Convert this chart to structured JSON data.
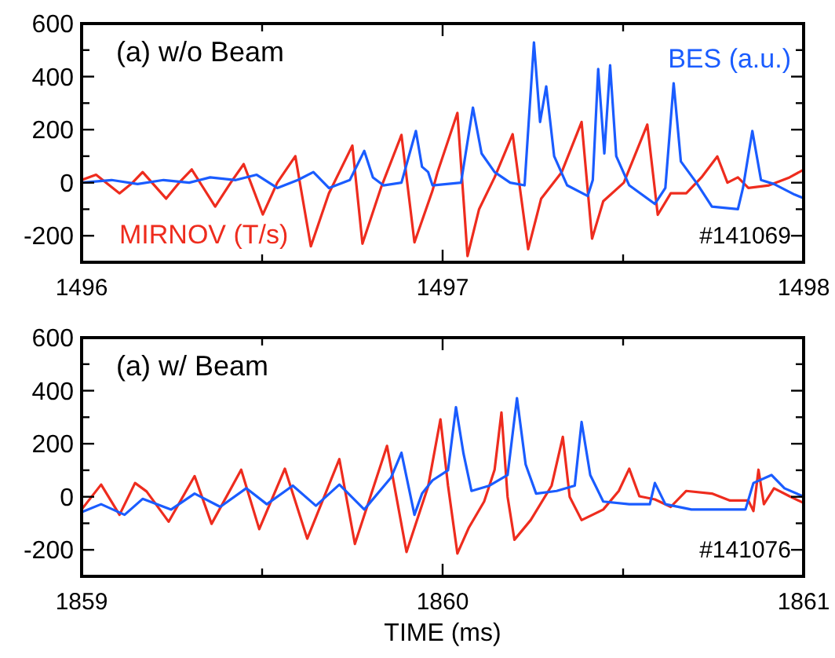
{
  "chart_data": [
    {
      "type": "line",
      "annotations": [
        "(a) w/o Beam",
        "#141069"
      ],
      "xlim": [
        1496,
        1498
      ],
      "xticks": [
        1496,
        {
          "value": 1496.5,
          "label": null
        },
        1497,
        {
          "value": 1497.5,
          "label": null
        },
        1498
      ],
      "ylim": [
        -300,
        600
      ],
      "yticks": [
        {
          "value": -300,
          "label": null
        },
        -200,
        {
          "value": -100,
          "label": null
        },
        0,
        {
          "value": 100,
          "label": null
        },
        200,
        {
          "value": 300,
          "label": null
        },
        400,
        {
          "value": 500,
          "label": null
        },
        600
      ],
      "grid": false,
      "series": [
        {
          "name": "MIRNOV (T/s)",
          "color": "#ee2c1e",
          "x": [
            1496,
            1496.04,
            1496.105,
            1496.141,
            1496.169,
            1496.234,
            1496.27,
            1496.305,
            1496.37,
            1496.413,
            1496.449,
            1496.502,
            1496.542,
            1496.592,
            1496.635,
            1496.685,
            1496.75,
            1496.778,
            1496.829,
            1496.886,
            1496.922,
            1496.972,
            1496.986,
            1497.041,
            1497.069,
            1497.101,
            1497.144,
            1497.194,
            1497.237,
            1497.273,
            1497.33,
            1497.385,
            1497.414,
            1497.445,
            1497.502,
            1497.567,
            1497.596,
            1497.632,
            1497.675,
            1497.717,
            1497.761,
            1497.789,
            1497.818,
            1497.847,
            1497.904,
            1497.961,
            1498
          ],
          "values": [
            10,
            30,
            -40,
            0,
            40,
            -60,
            0,
            50,
            -90,
            0,
            70,
            -120,
            0,
            100,
            -240,
            -40,
            140,
            -230,
            -20,
            180,
            -225,
            -30,
            40,
            263,
            -277,
            -100,
            20,
            183,
            -251,
            -60,
            40,
            229,
            -211,
            -70,
            0,
            219,
            -121,
            -40,
            -40,
            20,
            99,
            0,
            20,
            -20,
            -10,
            20,
            49
          ]
        },
        {
          "name": "BES (a.u.)",
          "color": "#1a5cff",
          "x": [
            1496,
            1496.083,
            1496.155,
            1496.227,
            1496.298,
            1496.356,
            1496.427,
            1496.485,
            1496.542,
            1496.599,
            1496.642,
            1496.685,
            1496.743,
            1496.783,
            1496.807,
            1496.836,
            1496.886,
            1496.926,
            1496.943,
            1496.96,
            1496.972,
            1497.051,
            1497.084,
            1497.108,
            1497.144,
            1497.187,
            1497.227,
            1497.253,
            1497.27,
            1497.287,
            1497.309,
            1497.345,
            1497.402,
            1497.416,
            1497.431,
            1497.448,
            1497.464,
            1497.481,
            1497.517,
            1497.588,
            1497.617,
            1497.64,
            1497.66,
            1497.703,
            1497.746,
            1497.818,
            1497.832,
            1497.858,
            1497.882,
            1497.918,
            1497.975,
            1497.998
          ],
          "values": [
            0,
            10,
            -5,
            10,
            0,
            20,
            10,
            30,
            -20,
            10,
            40,
            -20,
            10,
            120,
            20,
            -10,
            0,
            195,
            60,
            40,
            -10,
            0,
            283,
            110,
            40,
            0,
            -10,
            529,
            229,
            363,
            100,
            -10,
            -50,
            10,
            429,
            110,
            443,
            100,
            -10,
            -80,
            -20,
            375,
            80,
            0,
            -90,
            -100,
            -20,
            195,
            10,
            -5,
            -45,
            -57
          ]
        }
      ]
    },
    {
      "type": "line",
      "xlabel": "TIME (ms)",
      "annotations": [
        "(a) w/ Beam",
        "#141076"
      ],
      "xlim": [
        1859,
        1861
      ],
      "xticks": [
        1859,
        {
          "value": 1859.5,
          "label": null
        },
        1860,
        {
          "value": 1860.5,
          "label": null
        },
        1861
      ],
      "ylim": [
        -300,
        600
      ],
      "yticks": [
        {
          "value": -300,
          "label": null
        },
        -200,
        {
          "value": -100,
          "label": null
        },
        0,
        {
          "value": 100,
          "label": null
        },
        200,
        {
          "value": 300,
          "label": null
        },
        400,
        {
          "value": 500,
          "label": null
        },
        600
      ],
      "grid": false,
      "series": [
        {
          "color": "#ee2c1e",
          "x": [
            1859,
            1859.054,
            1859.105,
            1859.148,
            1859.18,
            1859.241,
            1859.313,
            1859.36,
            1859.442,
            1859.492,
            1859.563,
            1859.625,
            1859.714,
            1859.757,
            1859.846,
            1859.9,
            1859.96,
            1859.994,
            1860.015,
            1860.041,
            1860.072,
            1860.115,
            1860.144,
            1860.163,
            1860.18,
            1860.199,
            1860.244,
            1860.302,
            1860.333,
            1860.352,
            1860.385,
            1860.445,
            1860.488,
            1860.517,
            1860.545,
            1860.588,
            1860.632,
            1860.675,
            1860.746,
            1860.796,
            1860.847,
            1860.861,
            1860.875,
            1860.89,
            1860.918,
            1860.961,
            1860.998
          ],
          "values": [
            -48,
            46,
            -68,
            52,
            20,
            -94,
            78,
            -102,
            102,
            -122,
            106,
            -158,
            142,
            -178,
            192,
            -208,
            40,
            292,
            42,
            -214,
            -118,
            -18,
            102,
            318,
            0,
            -162,
            -88,
            42,
            226,
            0,
            -88,
            -48,
            22,
            106,
            2,
            -10,
            -38,
            22,
            12,
            -14,
            -14,
            -54,
            102,
            -28,
            32,
            2,
            -22
          ]
        },
        {
          "color": "#1a5cff",
          "x": [
            1859,
            1859.054,
            1859.119,
            1859.169,
            1859.248,
            1859.313,
            1859.384,
            1859.456,
            1859.513,
            1859.585,
            1859.649,
            1859.714,
            1859.783,
            1859.857,
            1859.886,
            1859.922,
            1859.943,
            1859.972,
            1860.015,
            1860.037,
            1860.058,
            1860.08,
            1860.13,
            1860.18,
            1860.206,
            1860.23,
            1860.259,
            1860.316,
            1860.366,
            1860.385,
            1860.409,
            1860.445,
            1860.517,
            1860.574,
            1860.588,
            1860.617,
            1860.689,
            1860.804,
            1860.839,
            1860.861,
            1860.911,
            1860.947,
            1860.998
          ],
          "values": [
            -58,
            -28,
            -68,
            -8,
            -48,
            12,
            -38,
            32,
            -28,
            42,
            -34,
            46,
            -48,
            72,
            166,
            -68,
            12,
            62,
            100,
            338,
            162,
            22,
            42,
            82,
            372,
            122,
            12,
            22,
            42,
            282,
            82,
            -18,
            -28,
            -28,
            52,
            -28,
            -48,
            -48,
            -48,
            52,
            82,
            32,
            2
          ]
        }
      ]
    }
  ]
}
